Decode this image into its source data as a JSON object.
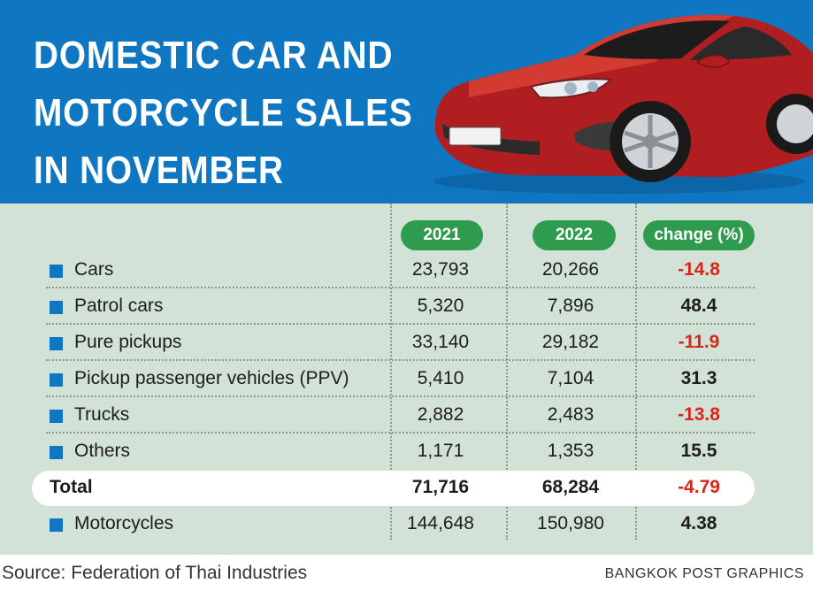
{
  "title_lines": [
    "DOMESTIC CAR AND",
    "MOTORCYCLE SALES",
    "IN NOVEMBER"
  ],
  "columns": [
    "2021",
    "2022",
    "change (%)"
  ],
  "rows": [
    {
      "label": "Cars",
      "y2021": "23,793",
      "y2022": "20,266",
      "change": "-14.8",
      "negative": true
    },
    {
      "label": "Patrol cars",
      "y2021": "5,320",
      "y2022": "7,896",
      "change": "48.4",
      "negative": false
    },
    {
      "label": "Pure pickups",
      "y2021": "33,140",
      "y2022": "29,182",
      "change": "-11.9",
      "negative": true
    },
    {
      "label": "Pickup passenger vehicles (PPV)",
      "y2021": "5,410",
      "y2022": "7,104",
      "change": "31.3",
      "negative": false
    },
    {
      "label": "Trucks",
      "y2021": "2,882",
      "y2022": "2,483",
      "change": "-13.8",
      "negative": true
    },
    {
      "label": "Others",
      "y2021": "1,171",
      "y2022": "1,353",
      "change": "15.5",
      "negative": false
    }
  ],
  "total": {
    "label": "Total",
    "y2021": "71,716",
    "y2022": "68,284",
    "change": "-4.79",
    "negative": true
  },
  "motorcycles": {
    "label": "Motorcycles",
    "y2021": "144,648",
    "y2022": "150,980",
    "change": "4.38",
    "negative": false
  },
  "source": "Source: Federation of Thai Industries",
  "credit": "BANGKOK POST GRAPHICS",
  "colors": {
    "header_blue": "#0f77c2",
    "table_bg": "#d3e2d6",
    "pill_green": "#2e9b4f",
    "negative_red": "#d9261c"
  }
}
